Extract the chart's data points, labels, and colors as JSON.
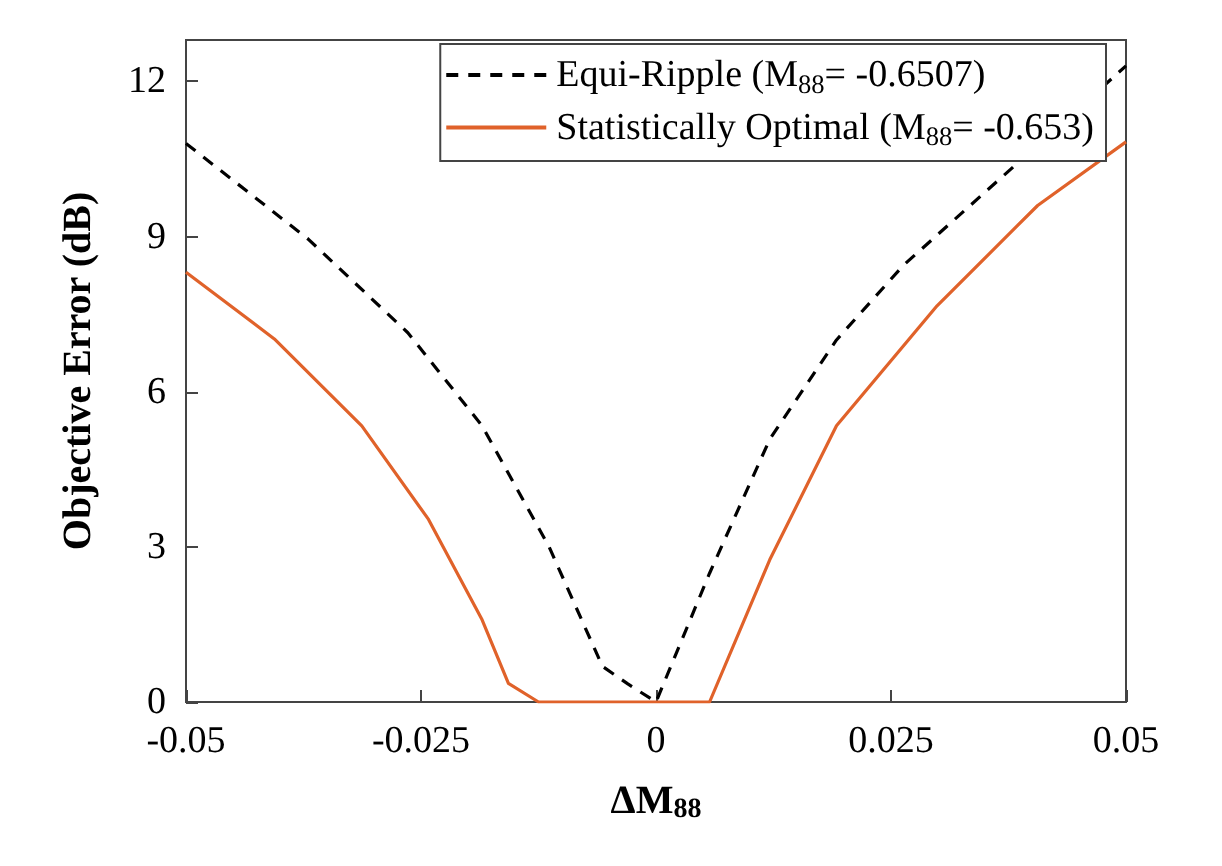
{
  "chart_data": {
    "type": "line",
    "xlabel": "ΔM$_{88}$",
    "ylabel": "Objective Error (dB)",
    "xlim": [
      -0.05,
      0.05
    ],
    "xticks": [
      -0.05,
      -0.025,
      0,
      0.025,
      0.05
    ],
    "ylim": [
      0,
      12.8
    ],
    "yticks": [
      0,
      3,
      6,
      9,
      12
    ],
    "grid": false,
    "legend": "top right",
    "marker": "none",
    "series": [
      {
        "name": "Equi-Ripple (M$_{88}$= -0.6507)",
        "color": "#000000",
        "line_style": "dashed",
        "x": [
          -0.05,
          -0.037,
          -0.0264,
          -0.0185,
          -0.0114,
          -0.0057,
          -0.003,
          0,
          0.0057,
          0.0121,
          0.0192,
          0.0263,
          0.05
        ],
        "values": [
          10.8,
          8.95,
          7.14,
          5.34,
          3.01,
          0.69,
          0.35,
          0,
          2.49,
          5.08,
          7.0,
          8.44,
          12.3
        ]
      },
      {
        "name": "Statistically Optimal (M$_{88}$= -0.653)",
        "color": "#e0622a",
        "line_style": "solid",
        "x": [
          -0.05,
          -0.0406,
          -0.0313,
          -0.0242,
          -0.0185,
          -0.0157,
          -0.0125,
          0.0057,
          0.0121,
          0.0192,
          0.0299,
          0.0406,
          0.05
        ],
        "values": [
          8.31,
          7.02,
          5.34,
          3.53,
          1.59,
          0.36,
          0,
          0,
          2.75,
          5.34,
          7.66,
          9.6,
          10.83
        ]
      }
    ]
  }
}
